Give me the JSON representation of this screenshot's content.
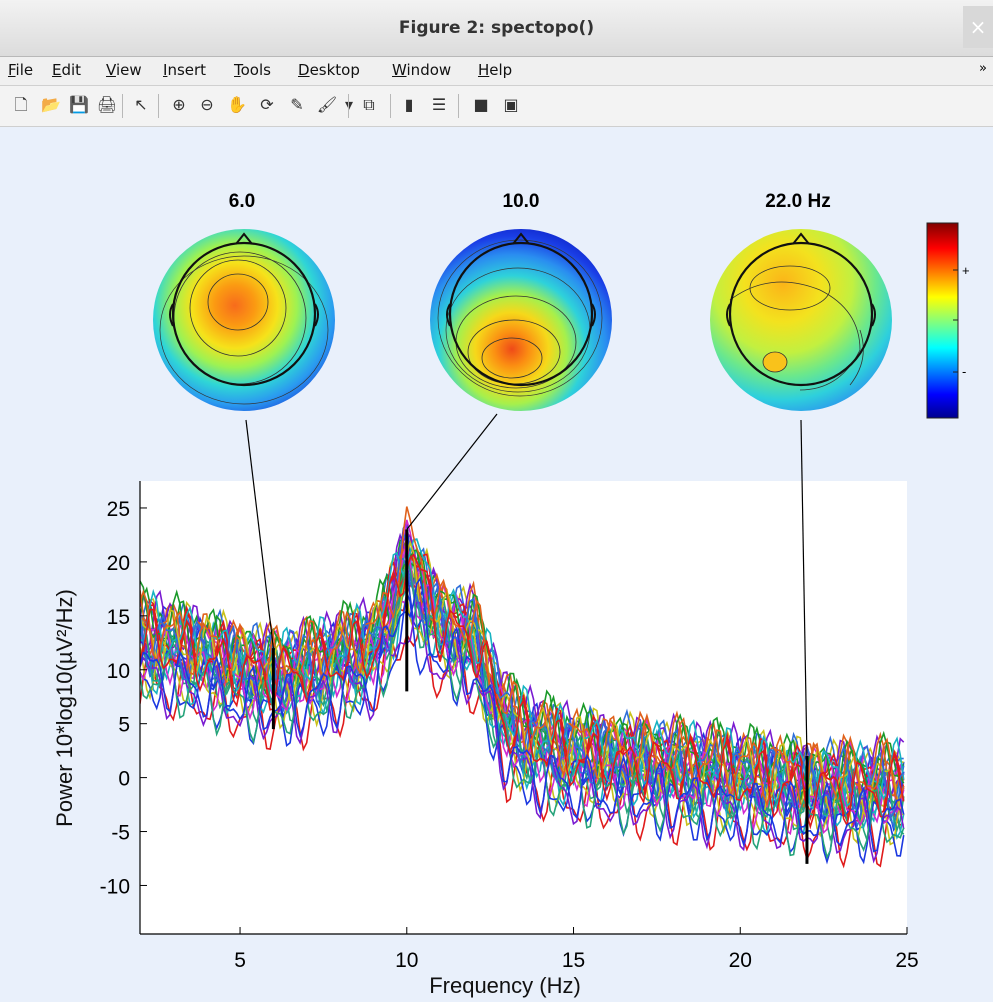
{
  "window": {
    "title": "Figure 2: spectopo()",
    "close_glyph": "×"
  },
  "menu": [
    "File",
    "Edit",
    "View",
    "Insert",
    "Tools",
    "Desktop",
    "Window",
    "Help"
  ],
  "menu_mnemonics": [
    "F",
    "E",
    "V",
    "I",
    "T",
    "D",
    "W",
    "H"
  ],
  "toolbar_icons": [
    "new-figure-icon",
    "open-file-icon",
    "save-icon",
    "print-icon",
    "pointer-icon",
    "zoom-in-icon",
    "zoom-out-icon",
    "pan-hand-icon",
    "rotate-3d-icon",
    "data-cursor-icon",
    "brush-icon",
    "brush-dropdown-icon",
    "link-plot-icon",
    "colorbar-icon",
    "legend-icon",
    "hide-plot-tools-icon",
    "show-plot-tools-icon"
  ],
  "colors": {
    "figure_bg": "#e9f0fb",
    "axes_bg": "#ffffff",
    "marker": "#000000"
  },
  "topomaps": [
    {
      "label": "6.0"
    },
    {
      "label": "10.0"
    },
    {
      "label": "22.0 Hz"
    }
  ],
  "colorbar": {
    "plus_label": "+",
    "minus_label": "-"
  },
  "chart_data": {
    "type": "line",
    "xlabel": "Frequency (Hz)",
    "ylabel": "Power 10*log10(µV²/Hz)",
    "xlim": [
      2,
      25
    ],
    "ylim": [
      -14.5,
      27.5
    ],
    "xticks": [
      5,
      10,
      15,
      20,
      25
    ],
    "yticks": [
      -10,
      -5,
      0,
      5,
      10,
      15,
      20,
      25
    ],
    "marker_freqs": [
      6.0,
      10.0,
      22.0
    ],
    "marker_ranges": [
      [
        4.5,
        12
      ],
      [
        8,
        23
      ],
      [
        -8,
        2
      ]
    ],
    "channel_count": 32,
    "mean_spectrum": {
      "x": [
        2,
        3,
        4,
        5,
        6,
        7,
        8,
        9,
        9.5,
        10,
        10.5,
        11,
        12,
        12.5,
        13,
        14,
        15,
        16,
        18,
        20,
        22,
        24,
        25
      ],
      "y": [
        12,
        11,
        10,
        9,
        8.5,
        9,
        10,
        11,
        14,
        19,
        16,
        13,
        12,
        8,
        4,
        2,
        1,
        0.5,
        0,
        -1,
        -2,
        -2,
        -2
      ]
    },
    "grid": false
  }
}
